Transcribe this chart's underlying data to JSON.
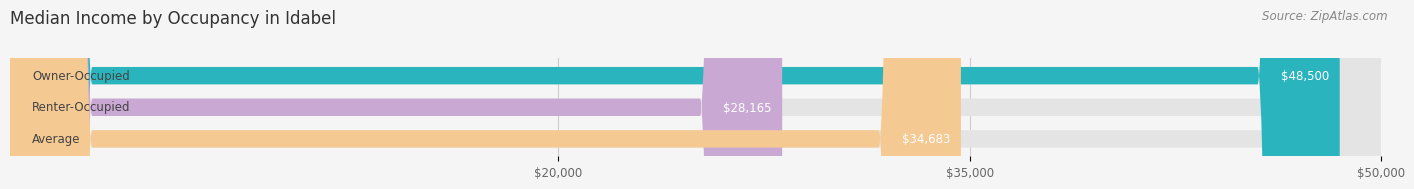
{
  "title": "Median Income by Occupancy in Idabel",
  "source": "Source: ZipAtlas.com",
  "categories": [
    "Owner-Occupied",
    "Renter-Occupied",
    "Average"
  ],
  "values": [
    48500,
    28165,
    34683
  ],
  "labels": [
    "$48,500",
    "$28,165",
    "$34,683"
  ],
  "bar_colors": [
    "#2ab5be",
    "#c9a8d4",
    "#f5c992"
  ],
  "bar_bg_color": "#e4e4e4",
  "xlim": [
    0,
    50000
  ],
  "xticks": [
    20000,
    35000,
    50000
  ],
  "xtick_labels": [
    "$20,000",
    "$35,000",
    "$50,000"
  ],
  "title_fontsize": 12,
  "label_fontsize": 8.5,
  "tick_fontsize": 8.5,
  "source_fontsize": 8.5,
  "background_color": "#f5f5f5"
}
